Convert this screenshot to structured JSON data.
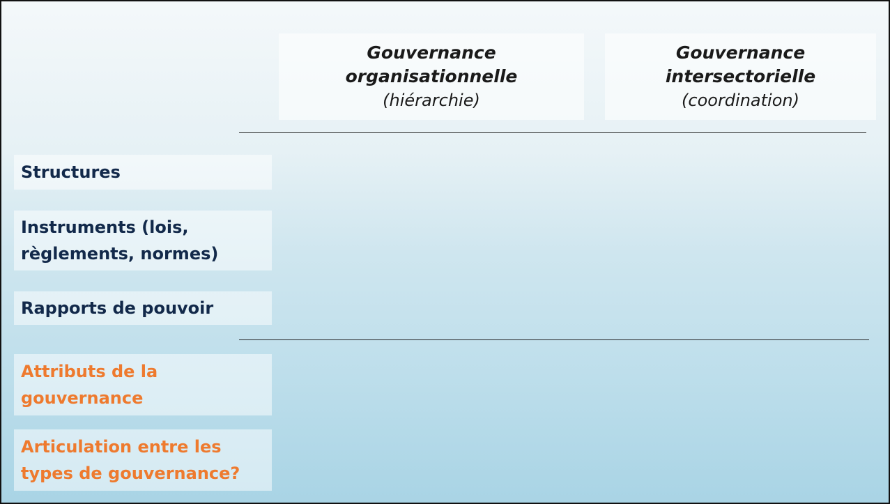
{
  "columns": [
    {
      "title": "Gouvernance organisationnelle",
      "subtitle": "(hiérarchie)"
    },
    {
      "title": "Gouvernance intersectorielle",
      "subtitle": "(coordination)"
    }
  ],
  "rows": [
    "Structures",
    "Instruments (lois, règlements, normes)",
    "Rapports de pouvoir",
    "Attributs de la gouvernance",
    "Articulation entre les types de gouvernance?"
  ]
}
